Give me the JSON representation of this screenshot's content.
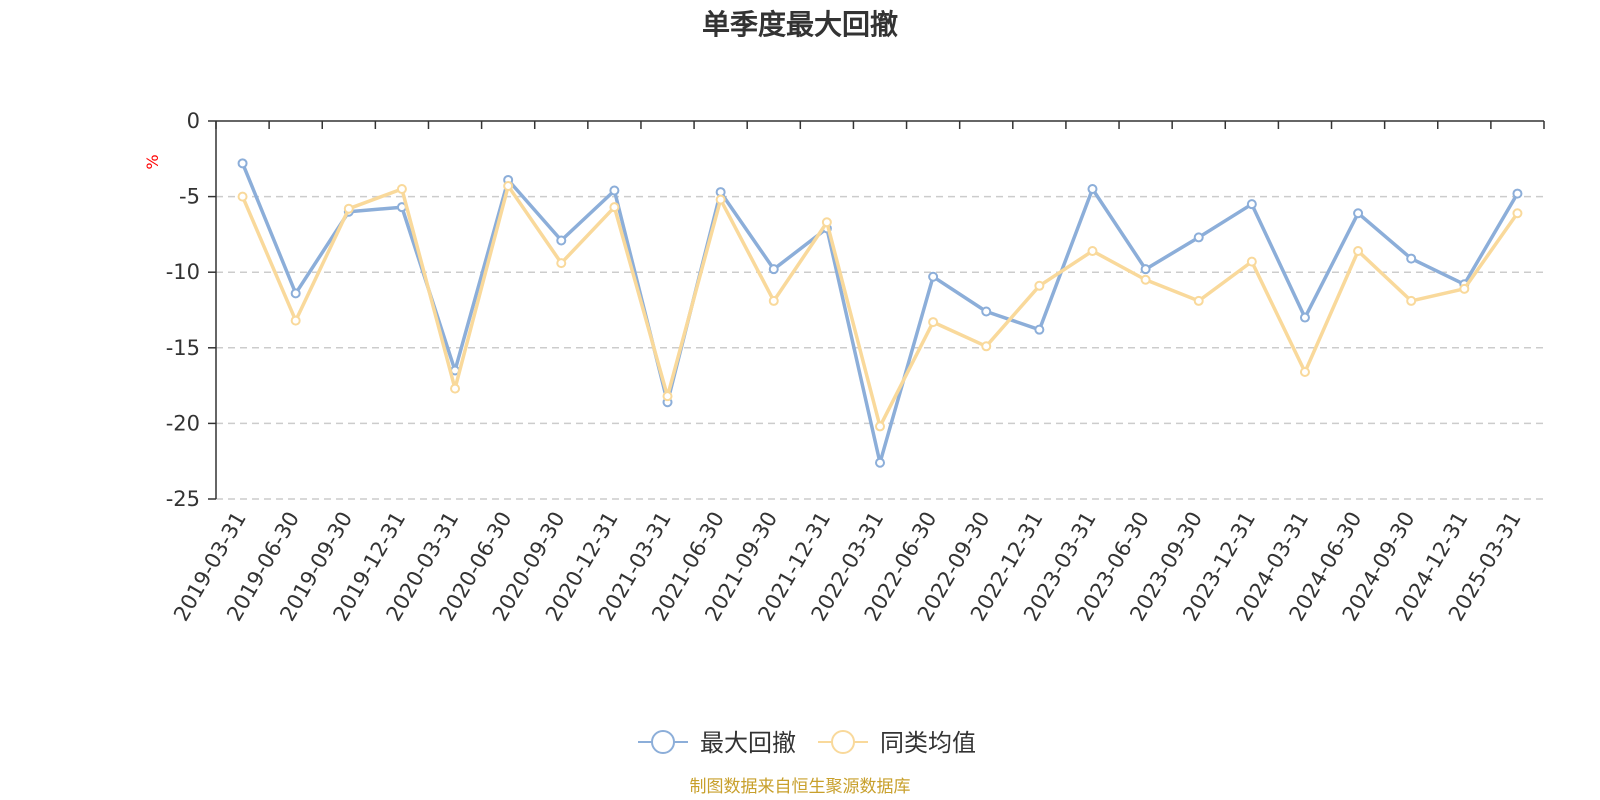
{
  "chart_data": {
    "type": "line",
    "title": "单季度最大回撤",
    "ylabel": "%",
    "ylim": [
      -25,
      0
    ],
    "yticks": [
      0,
      -5,
      -10,
      -15,
      -20,
      -25
    ],
    "grid": true,
    "categories": [
      "2019-03-31",
      "2019-06-30",
      "2019-09-30",
      "2019-12-31",
      "2020-03-31",
      "2020-06-30",
      "2020-09-30",
      "2020-12-31",
      "2021-03-31",
      "2021-06-30",
      "2021-09-30",
      "2021-12-31",
      "2022-03-31",
      "2022-06-30",
      "2022-09-30",
      "2022-12-31",
      "2023-03-31",
      "2023-06-30",
      "2023-09-30",
      "2023-12-31",
      "2024-03-31",
      "2024-06-30",
      "2024-09-30",
      "2024-12-31",
      "2025-03-31"
    ],
    "series": [
      {
        "name": "最大回撤",
        "color": "#8caed9",
        "values": [
          -2.8,
          -11.4,
          -6.0,
          -5.7,
          -16.5,
          -3.9,
          -7.9,
          -4.6,
          -18.6,
          -4.7,
          -9.8,
          -7.1,
          -22.6,
          -10.3,
          -12.6,
          -13.8,
          -4.5,
          -9.8,
          -7.7,
          -5.5,
          -13.0,
          -6.1,
          -9.1,
          -10.8,
          -4.8
        ]
      },
      {
        "name": "同类均值",
        "color": "#f9d99b",
        "values": [
          -5.0,
          -13.2,
          -5.8,
          -4.5,
          -17.7,
          -4.3,
          -9.4,
          -5.7,
          -18.2,
          -5.2,
          -11.9,
          -6.7,
          -20.2,
          -13.3,
          -14.9,
          -10.9,
          -8.6,
          -10.5,
          -11.9,
          -9.3,
          -16.6,
          -8.6,
          -11.9,
          -11.1,
          -6.1
        ]
      }
    ],
    "legend": "bottom-center"
  },
  "footer": {
    "source": "制图数据来自恒生聚源数据库"
  }
}
